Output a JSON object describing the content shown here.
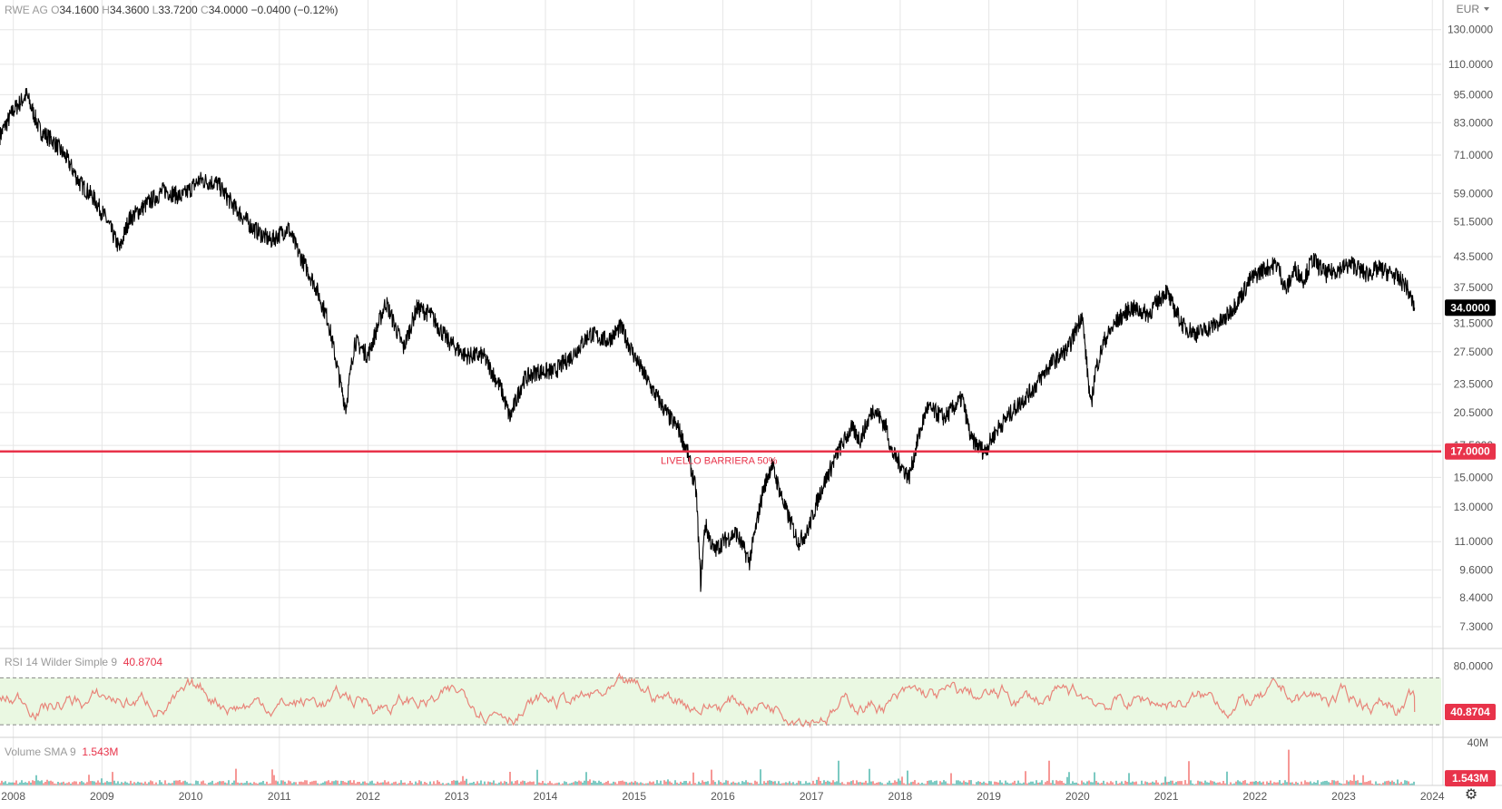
{
  "header": {
    "symbol": "RWE AG",
    "open_label": "O",
    "open": "34.1600",
    "high_label": "H",
    "high": "34.3600",
    "low_label": "L",
    "low": "33.7200",
    "close_label": "C",
    "close": "34.0000",
    "change": "−0.0400 (−0.12%)"
  },
  "rsi_header": {
    "label": "RSI 14 Wilder Simple 9",
    "value": "40.8704"
  },
  "volume_header": {
    "label": "Volume SMA 9",
    "value": "1.543M"
  },
  "chart_data": [
    {
      "type": "line",
      "panel": "price",
      "series": [
        {
          "name": "RWE AG"
        }
      ],
      "y_scale": "log",
      "currency_label": "EUR",
      "y_ticks": [
        130,
        110,
        95,
        83,
        71,
        59,
        51.5,
        43.5,
        37.5,
        31.5,
        27.5,
        23.5,
        20.5,
        17.5,
        15,
        13,
        11,
        9.6,
        8.4,
        7.3
      ],
      "y_tick_labels": [
        "130.0000",
        "110.0000",
        "95.0000",
        "83.0000",
        "71.0000",
        "59.0000",
        "51.5000",
        "43.5000",
        "37.5000",
        "31.5000",
        "27.5000",
        "23.5000",
        "20.5000",
        "17.5000",
        "15.0000",
        "13.0000",
        "11.0000",
        "9.6000",
        "8.4000",
        "7.3000"
      ],
      "ylim": [
        6.6,
        150
      ],
      "x_ticks": [
        "2008",
        "2009",
        "2010",
        "2011",
        "2012",
        "2013",
        "2014",
        "2015",
        "2016",
        "2017",
        "2018",
        "2019",
        "2020",
        "2021",
        "2022",
        "2023",
        "2024"
      ],
      "xlim": [
        2007.85,
        2024.1
      ],
      "x": [
        2007.85,
        2008.0,
        2008.15,
        2008.3,
        2008.45,
        2008.6,
        2008.75,
        2008.9,
        2009.05,
        2009.2,
        2009.3,
        2009.5,
        2009.7,
        2009.9,
        2010.1,
        2010.3,
        2010.5,
        2010.7,
        2010.9,
        2011.1,
        2011.2,
        2011.4,
        2011.55,
        2011.7,
        2011.75,
        2011.85,
        2012.0,
        2012.2,
        2012.4,
        2012.55,
        2012.7,
        2012.9,
        2013.1,
        2013.3,
        2013.5,
        2013.6,
        2013.75,
        2013.9,
        2014.1,
        2014.3,
        2014.5,
        2014.7,
        2014.85,
        2015.0,
        2015.2,
        2015.4,
        2015.5,
        2015.6,
        2015.7,
        2015.75,
        2015.8,
        2015.9,
        2016.0,
        2016.15,
        2016.3,
        2016.45,
        2016.55,
        2016.7,
        2016.85,
        2016.95,
        2017.1,
        2017.3,
        2017.45,
        2017.55,
        2017.7,
        2017.85,
        2017.9,
        2018.0,
        2018.1,
        2018.2,
        2018.3,
        2018.5,
        2018.7,
        2018.8,
        2018.95,
        2019.1,
        2019.3,
        2019.5,
        2019.7,
        2019.9,
        2020.05,
        2020.15,
        2020.2,
        2020.3,
        2020.45,
        2020.6,
        2020.8,
        2021.0,
        2021.05,
        2021.2,
        2021.35,
        2021.5,
        2021.65,
        2021.8,
        2021.95,
        2022.1,
        2022.25,
        2022.35,
        2022.45,
        2022.55,
        2022.65,
        2022.8,
        2022.95,
        2023.1,
        2023.25,
        2023.4,
        2023.55,
        2023.7,
        2023.8
      ],
      "values": [
        78,
        88,
        95,
        80,
        76,
        70,
        62,
        58,
        52,
        45,
        52,
        56,
        60,
        58,
        63,
        62,
        55,
        50,
        47,
        50,
        45,
        38,
        32,
        23,
        21,
        29,
        27,
        35,
        28,
        34,
        33,
        29,
        27,
        27,
        23,
        20,
        24,
        25,
        25,
        27,
        30,
        29,
        31,
        27,
        23,
        20,
        19,
        17,
        14,
        9,
        12,
        10.5,
        11,
        11.5,
        10,
        14,
        16,
        13,
        11,
        11.5,
        14,
        17,
        19,
        18,
        21,
        19,
        17,
        16,
        15,
        18,
        21,
        20,
        22,
        18,
        17,
        19,
        21,
        23,
        26,
        28,
        33,
        21,
        25,
        29,
        32,
        34,
        33,
        37,
        35,
        31,
        30,
        31,
        32,
        35,
        39,
        41,
        42,
        37,
        41,
        39,
        43,
        40,
        41,
        42,
        40,
        41,
        40,
        38,
        34
      ],
      "annotation": {
        "label": "LIVELLO BARRIERA 50%",
        "level": 17.0,
        "level_label": "17.0000"
      },
      "last_value_label": "34.0000"
    },
    {
      "type": "line",
      "panel": "rsi",
      "y_ticks": [
        80
      ],
      "y_tick_labels": [
        "80.0000"
      ],
      "ylim": [
        20,
        95
      ],
      "bands": [
        70,
        30
      ],
      "last_value": 40.87,
      "last_value_label": "40.8704"
    },
    {
      "type": "bar",
      "panel": "volume",
      "y_ticks": [
        40
      ],
      "y_tick_labels": [
        "40M"
      ],
      "ylim": [
        0,
        45
      ],
      "last_value_label": "1.543M"
    }
  ],
  "colors": {
    "price_line": "#000000",
    "barrier": "#e8334a",
    "rsi_line": "#e8857a",
    "rsi_band_fill": "#eaf8e2",
    "vol_up": "#26a69a",
    "vol_down": "#ef5350",
    "grid": "#e6e6e6"
  },
  "icons": {
    "settings": "gear-icon"
  }
}
